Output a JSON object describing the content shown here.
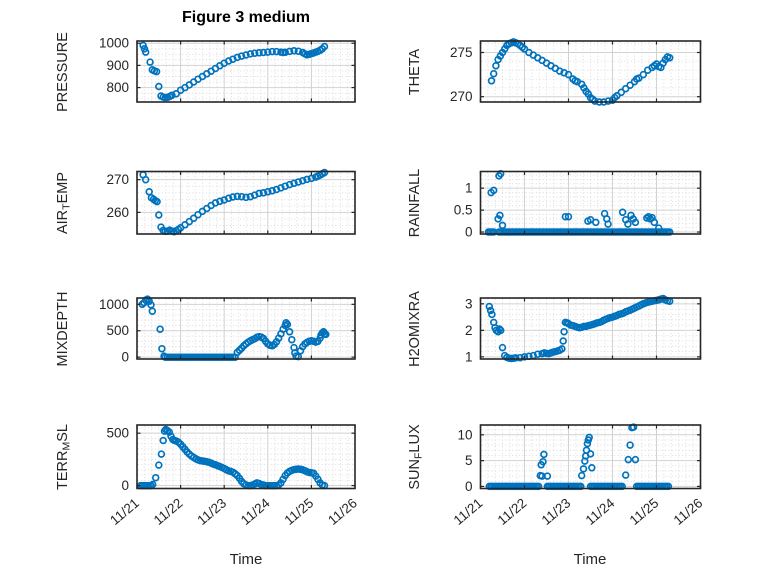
{
  "figure": {
    "title": "Figure 3 medium",
    "x_axis_label": "Time",
    "marker_color": "#0072BD",
    "axis_color": "#262626",
    "grid_color": "#d2d2d2",
    "minor_grid_color": "#d7d7d7",
    "background": "#ffffff",
    "x_tick_labels": [
      "11/21",
      "11/22",
      "11/23",
      "11/24",
      "11/25",
      "11/26"
    ],
    "x_tick_values": [
      0,
      1,
      2,
      3,
      4,
      5
    ],
    "x_range": [
      0,
      5
    ],
    "x_unit": "days since 11/21"
  },
  "chart_data": [
    {
      "id": "pressure",
      "type": "scatter",
      "row": 0,
      "col": 0,
      "ylabel": "PRESSURE",
      "ylabel_parts": [
        {
          "t": "PRESSURE"
        }
      ],
      "yticks": [
        800,
        900,
        1000
      ],
      "ylim": [
        735,
        1010
      ],
      "y_minor_step": 25,
      "x": [
        0.14,
        0.17,
        0.2,
        0.3,
        0.35,
        0.4,
        0.45,
        0.5,
        0.55,
        0.6,
        0.65,
        0.7,
        0.75,
        0.8,
        0.9,
        1.0,
        1.1,
        1.2,
        1.3,
        1.4,
        1.5,
        1.6,
        1.7,
        1.8,
        1.9,
        2.0,
        2.1,
        2.2,
        2.3,
        2.4,
        2.5,
        2.6,
        2.7,
        2.8,
        2.9,
        3.0,
        3.1,
        3.2,
        3.3,
        3.35,
        3.4,
        3.5,
        3.6,
        3.7,
        3.8,
        3.85,
        3.9,
        3.95,
        4.0,
        4.05,
        4.1,
        4.15,
        4.2,
        4.25,
        4.3
      ],
      "y": [
        990,
        975,
        960,
        915,
        880,
        875,
        872,
        805,
        762,
        757,
        755,
        756,
        760,
        765,
        772,
        788,
        800,
        812,
        825,
        838,
        850,
        862,
        874,
        886,
        898,
        910,
        920,
        928,
        936,
        942,
        947,
        952,
        955,
        957,
        958,
        960,
        962,
        962,
        960,
        958,
        959,
        963,
        966,
        964,
        958,
        952,
        948,
        950,
        953,
        956,
        960,
        963,
        968,
        975,
        985
      ]
    },
    {
      "id": "theta",
      "type": "scatter",
      "row": 0,
      "col": 1,
      "ylabel": "THETA",
      "ylabel_parts": [
        {
          "t": "THETA"
        }
      ],
      "yticks": [
        270,
        275
      ],
      "ylim": [
        269.4,
        276.3
      ],
      "y_minor_step": 1,
      "x": [
        0.25,
        0.3,
        0.35,
        0.4,
        0.45,
        0.5,
        0.55,
        0.6,
        0.65,
        0.7,
        0.75,
        0.8,
        0.85,
        0.9,
        0.95,
        1.0,
        1.1,
        1.2,
        1.3,
        1.4,
        1.5,
        1.6,
        1.7,
        1.8,
        1.9,
        2.0,
        2.1,
        2.15,
        2.2,
        2.3,
        2.35,
        2.4,
        2.45,
        2.5,
        2.55,
        2.6,
        2.7,
        2.8,
        2.9,
        3.0,
        3.05,
        3.1,
        3.2,
        3.3,
        3.4,
        3.5,
        3.55,
        3.6,
        3.7,
        3.8,
        3.9,
        3.95,
        4.0,
        4.05,
        4.1,
        4.15,
        4.2,
        4.25,
        4.3
      ],
      "y": [
        271.8,
        272.6,
        273.5,
        274.2,
        274.6,
        275.0,
        275.4,
        275.8,
        276.0,
        276.1,
        276.2,
        276.1,
        276.0,
        275.8,
        275.6,
        275.4,
        275.0,
        274.7,
        274.4,
        274.1,
        273.8,
        273.5,
        273.2,
        272.9,
        272.7,
        272.5,
        272.0,
        271.8,
        271.7,
        271.4,
        271.0,
        270.6,
        270.3,
        269.9,
        269.7,
        269.5,
        269.4,
        269.4,
        269.5,
        269.6,
        269.9,
        270.1,
        270.5,
        270.9,
        271.3,
        271.7,
        272.0,
        272.1,
        272.5,
        273.0,
        273.3,
        273.5,
        273.7,
        273.4,
        273.3,
        273.8,
        274.2,
        274.5,
        274.4
      ]
    },
    {
      "id": "air-temp",
      "type": "scatter",
      "row": 1,
      "col": 0,
      "ylabel": "AIR_TEMP",
      "ylabel_parts": [
        {
          "t": "AIR"
        },
        {
          "t": "T",
          "sub": true
        },
        {
          "t": "EMP"
        }
      ],
      "yticks": [
        260,
        270
      ],
      "ylim": [
        253.4,
        272.5
      ],
      "y_minor_step": 2,
      "x": [
        0.14,
        0.2,
        0.28,
        0.33,
        0.38,
        0.42,
        0.46,
        0.5,
        0.55,
        0.6,
        0.65,
        0.7,
        0.75,
        0.8,
        0.85,
        0.9,
        0.95,
        1.0,
        1.1,
        1.2,
        1.3,
        1.4,
        1.5,
        1.6,
        1.7,
        1.8,
        1.9,
        2.0,
        2.1,
        2.2,
        2.3,
        2.4,
        2.5,
        2.6,
        2.7,
        2.8,
        2.9,
        3.0,
        3.1,
        3.2,
        3.3,
        3.4,
        3.5,
        3.6,
        3.7,
        3.8,
        3.9,
        4.0,
        4.1,
        4.15,
        4.2,
        4.25,
        4.3
      ],
      "y": [
        271.5,
        270.0,
        266.3,
        264.5,
        264.0,
        263.6,
        263.3,
        259.2,
        255.5,
        254.5,
        254.2,
        254.3,
        254.6,
        254.3,
        254.1,
        254.4,
        254.8,
        255.3,
        256.2,
        257.2,
        258.2,
        259.3,
        260.3,
        261.2,
        262.1,
        262.9,
        263.4,
        263.8,
        264.3,
        264.7,
        264.9,
        264.8,
        264.6,
        264.8,
        265.3,
        265.8,
        266.0,
        266.3,
        266.6,
        267.0,
        267.5,
        268.0,
        268.5,
        268.9,
        269.3,
        269.7,
        270.1,
        270.4,
        270.8,
        271.1,
        271.4,
        271.8,
        272.2
      ]
    },
    {
      "id": "rainfall",
      "type": "scatter",
      "row": 1,
      "col": 1,
      "ylabel": "RAINFALL",
      "ylabel_parts": [
        {
          "t": "RAINFALL"
        }
      ],
      "yticks": [
        0,
        0.5,
        1
      ],
      "ylim": [
        -0.045,
        1.38
      ],
      "y_minor_step": 0.1,
      "x": [
        0.24,
        0.3,
        0.4,
        0.42,
        0.44,
        0.46,
        0.5,
        1.93,
        2.0,
        2.44,
        2.5,
        2.62,
        2.82,
        2.87,
        2.9,
        3.23,
        3.3,
        3.35,
        3.42,
        3.47,
        3.52,
        3.78,
        3.82,
        3.86,
        3.9,
        3.95,
        4.05
      ],
      "y": [
        0.9,
        0.95,
        0.3,
        1.28,
        0.38,
        1.33,
        0.15,
        0.35,
        0.35,
        0.25,
        0.28,
        0.22,
        0.42,
        0.3,
        0.18,
        0.45,
        0.28,
        0.18,
        0.38,
        0.3,
        0.22,
        0.32,
        0.35,
        0.3,
        0.33,
        0.22,
        0.09
      ],
      "zero_segments": {
        "step": 0.04,
        "ranges": [
          [
            0.18,
            0.3
          ],
          [
            0.42,
            4.3
          ]
        ]
      }
    },
    {
      "id": "mixdepth",
      "type": "scatter",
      "row": 2,
      "col": 0,
      "ylabel": "MIXDEPTH",
      "ylabel_parts": [
        {
          "t": "MIXDEPTH"
        }
      ],
      "yticks": [
        0,
        500,
        1000
      ],
      "ylim": [
        -35,
        1120
      ],
      "y_minor_step": 100,
      "x": [
        0.12,
        0.16,
        0.2,
        0.24,
        0.28,
        0.32,
        0.35,
        0.53,
        0.57,
        0.62,
        2.3,
        2.35,
        2.4,
        2.45,
        2.5,
        2.55,
        2.6,
        2.65,
        2.7,
        2.75,
        2.8,
        2.85,
        2.9,
        2.95,
        3.0,
        3.05,
        3.1,
        3.15,
        3.2,
        3.25,
        3.3,
        3.35,
        3.4,
        3.42,
        3.45,
        3.5,
        3.55,
        3.6,
        3.62,
        3.65,
        3.7,
        3.75,
        3.8,
        3.85,
        3.9,
        3.95,
        4.0,
        4.05,
        4.1,
        4.15,
        4.2,
        4.22,
        4.25,
        4.28,
        4.3,
        4.33
      ],
      "y": [
        1000,
        1030,
        1080,
        1100,
        1060,
        990,
        870,
        530,
        160,
        20,
        90,
        130,
        170,
        215,
        250,
        285,
        310,
        330,
        350,
        375,
        390,
        380,
        355,
        300,
        250,
        225,
        215,
        240,
        290,
        360,
        440,
        530,
        600,
        650,
        620,
        480,
        330,
        180,
        80,
        20,
        10,
        120,
        200,
        250,
        280,
        300,
        310,
        300,
        285,
        300,
        360,
        420,
        460,
        480,
        440,
        430
      ],
      "zero_segments": {
        "step": 0.05,
        "ranges": [
          [
            0.65,
            2.26
          ]
        ]
      }
    },
    {
      "id": "h2omixra",
      "type": "scatter",
      "row": 2,
      "col": 1,
      "ylabel": "H2OMIXRA",
      "ylabel_parts": [
        {
          "t": "H2OMIXRA"
        }
      ],
      "yticks": [
        1,
        2,
        3
      ],
      "ylim": [
        0.92,
        3.22
      ],
      "y_minor_step": 0.2,
      "x": [
        0.2,
        0.23,
        0.26,
        0.3,
        0.33,
        0.36,
        0.4,
        0.43,
        0.46,
        0.5,
        0.55,
        0.6,
        0.65,
        0.7,
        0.75,
        0.8,
        0.9,
        1.0,
        1.1,
        1.2,
        1.3,
        1.4,
        1.45,
        1.5,
        1.55,
        1.6,
        1.65,
        1.7,
        1.75,
        1.8,
        1.85,
        1.88,
        1.9,
        1.93,
        1.97,
        2.0,
        2.05,
        2.1,
        2.15,
        2.2,
        2.25,
        2.3,
        2.35,
        2.4,
        2.45,
        2.5,
        2.55,
        2.6,
        2.65,
        2.7,
        2.75,
        2.8,
        2.85,
        2.9,
        2.95,
        3.0,
        3.05,
        3.1,
        3.15,
        3.2,
        3.25,
        3.3,
        3.35,
        3.4,
        3.45,
        3.5,
        3.55,
        3.6,
        3.65,
        3.7,
        3.75,
        3.8,
        3.85,
        3.9,
        3.95,
        4.0,
        4.05,
        4.1,
        4.15,
        4.2,
        4.25,
        4.3
      ],
      "y": [
        2.9,
        2.75,
        2.6,
        2.3,
        2.1,
        2.0,
        1.95,
        2.05,
        2.0,
        1.35,
        1.05,
        0.98,
        0.95,
        0.94,
        0.95,
        0.96,
        0.97,
        1.0,
        1.02,
        1.05,
        1.1,
        1.12,
        1.15,
        1.13,
        1.12,
        1.15,
        1.18,
        1.2,
        1.22,
        1.25,
        1.3,
        1.6,
        1.95,
        2.3,
        2.28,
        2.25,
        2.2,
        2.18,
        2.15,
        2.12,
        2.1,
        2.12,
        2.15,
        2.15,
        2.18,
        2.2,
        2.22,
        2.25,
        2.28,
        2.3,
        2.33,
        2.38,
        2.42,
        2.45,
        2.48,
        2.5,
        2.53,
        2.56,
        2.6,
        2.62,
        2.65,
        2.7,
        2.73,
        2.76,
        2.8,
        2.84,
        2.88,
        2.92,
        2.96,
        3.0,
        3.03,
        3.06,
        3.08,
        3.1,
        3.12,
        3.13,
        3.15,
        3.18,
        3.2,
        3.15,
        3.12,
        3.1
      ]
    },
    {
      "id": "terr-msl",
      "type": "scatter",
      "row": 3,
      "col": 0,
      "ylabel": "TERR_MSL",
      "ylabel_parts": [
        {
          "t": "TERR"
        },
        {
          "t": "M",
          "sub": true
        },
        {
          "t": "SL"
        }
      ],
      "yticks": [
        0,
        500
      ],
      "ylim": [
        -28,
        578
      ],
      "y_minor_step": 50,
      "x": [
        0.08,
        0.12,
        0.16,
        0.2,
        0.24,
        0.28,
        0.32,
        0.36,
        0.43,
        0.5,
        0.56,
        0.6,
        0.63,
        0.66,
        0.7,
        0.74,
        0.78,
        0.82,
        0.86,
        0.9,
        0.95,
        1.0,
        1.05,
        1.1,
        1.15,
        1.2,
        1.25,
        1.3,
        1.35,
        1.4,
        1.45,
        1.5,
        1.55,
        1.6,
        1.65,
        1.7,
        1.75,
        1.8,
        1.85,
        1.9,
        1.95,
        2.0,
        2.05,
        2.1,
        2.15,
        2.2,
        2.25,
        2.3,
        2.35,
        2.4,
        2.45,
        2.5,
        2.55,
        2.6,
        2.65,
        2.7,
        2.75,
        2.8,
        2.85,
        2.9,
        2.95,
        3.0,
        3.05,
        3.1,
        3.15,
        3.2,
        3.25,
        3.3,
        3.35,
        3.4,
        3.45,
        3.5,
        3.55,
        3.6,
        3.65,
        3.7,
        3.75,
        3.8,
        3.85,
        3.9,
        3.95,
        4.0,
        4.05,
        4.1,
        4.15,
        4.2,
        4.25,
        4.3
      ],
      "y": [
        0,
        0,
        0,
        0,
        0,
        0,
        0,
        10,
        75,
        195,
        300,
        430,
        520,
        535,
        525,
        510,
        470,
        440,
        430,
        425,
        415,
        395,
        370,
        345,
        320,
        300,
        282,
        268,
        255,
        245,
        238,
        234,
        232,
        228,
        222,
        214,
        205,
        198,
        190,
        182,
        172,
        163,
        150,
        140,
        135,
        128,
        112,
        95,
        68,
        40,
        18,
        5,
        0,
        0,
        5,
        15,
        25,
        20,
        10,
        5,
        0,
        0,
        0,
        0,
        0,
        0,
        5,
        25,
        60,
        95,
        120,
        135,
        145,
        152,
        155,
        158,
        155,
        150,
        142,
        132,
        125,
        122,
        118,
        90,
        60,
        25,
        5,
        0
      ]
    },
    {
      "id": "sun-flux",
      "type": "scatter",
      "row": 3,
      "col": 1,
      "ylabel": "SUN_FLUX",
      "ylabel_parts": [
        {
          "t": "SUN"
        },
        {
          "t": "F",
          "sub": true
        },
        {
          "t": "LUX"
        }
      ],
      "yticks": [
        0,
        5,
        10
      ],
      "ylim": [
        -0.4,
        11.9
      ],
      "y_minor_step": 1,
      "x": [
        1.36,
        1.38,
        1.4,
        1.42,
        1.44,
        1.52,
        2.3,
        2.34,
        2.37,
        2.39,
        2.41,
        2.43,
        2.45,
        2.47,
        2.5,
        2.53,
        3.3,
        3.36,
        3.4,
        3.44,
        3.48,
        3.52
      ],
      "y": [
        2.1,
        4.2,
        2.0,
        4.8,
        6.2,
        2.0,
        2.1,
        3.4,
        4.9,
        5.9,
        7.0,
        8.3,
        9.0,
        9.5,
        6.3,
        3.6,
        2.2,
        5.2,
        8.0,
        11.4,
        11.5,
        5.2
      ],
      "zero_segments": {
        "step": 0.04,
        "ranges": [
          [
            0.2,
            1.32
          ],
          [
            1.52,
            2.28
          ],
          [
            2.5,
            3.22
          ],
          [
            3.55,
            4.3
          ]
        ]
      }
    }
  ]
}
